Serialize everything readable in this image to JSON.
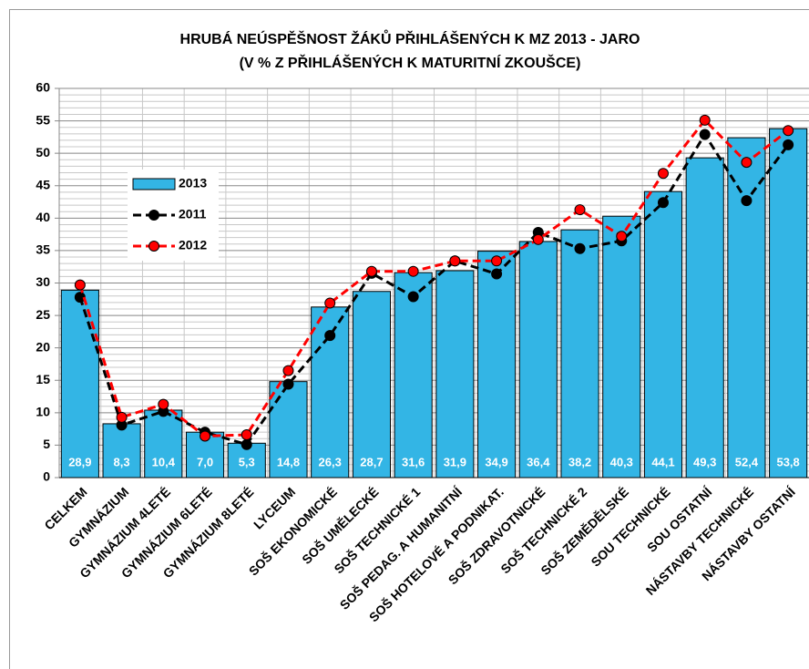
{
  "chart_data": {
    "type": "bar",
    "title": "HRUBÁ NEÚSPĚŠNOST ŽÁKŮ PŘIHLÁŠENÝCH K MZ 2013 - JARO",
    "subtitle": "(V % Z PŘIHLÁŠENÝCH K MATURITNÍ ZKOUŠCE)",
    "categories": [
      "CELKEM",
      "GYMNÁZIUM",
      "GYMNÁZIUM 4LETÉ",
      "GYMNÁZIUM 6LETÉ",
      "GYMNÁZIUM 8LETÉ",
      "LYCEUM",
      "SOŠ EKONOMICKÉ",
      "SOŠ UMĚLECKÉ",
      "SOŠ TECHNICKÉ 1",
      "SOŠ PEDAG. A HUMANITNÍ",
      "SOŠ HOTELOVÉ A PODNIKAT.",
      "SOŠ ZDRAVOTNICKÉ",
      "SOŠ TECHNICKÉ 2",
      "SOŠ ZEMĚDĚLSKÉ",
      "SOU TECHNICKÉ",
      "SOU OSTATNÍ",
      "NÁSTAVBY TECHNICKÉ",
      "NÁSTAVBY OSTATNÍ"
    ],
    "series": [
      {
        "name": "2013",
        "type": "bar",
        "color": "#33b5e5",
        "values": [
          28.9,
          8.3,
          10.4,
          7.0,
          5.3,
          14.8,
          26.3,
          28.7,
          31.6,
          31.9,
          34.9,
          36.4,
          38.2,
          40.3,
          44.1,
          49.3,
          52.4,
          53.8
        ],
        "value_labels": [
          "28,9",
          "8,3",
          "10,4",
          "7,0",
          "5,3",
          "14,8",
          "26,3",
          "28,7",
          "31,6",
          "31,9",
          "34,9",
          "36,4",
          "38,2",
          "40,3",
          "44,1",
          "49,3",
          "52,4",
          "53,8"
        ]
      },
      {
        "name": "2011",
        "type": "line",
        "color": "#000000",
        "values": [
          27.8,
          8.1,
          10.2,
          7.0,
          5.1,
          14.4,
          21.9,
          31.5,
          27.9,
          33.4,
          31.4,
          37.8,
          35.3,
          36.5,
          42.4,
          52.9,
          42.7,
          51.3
        ]
      },
      {
        "name": "2012",
        "type": "line",
        "color": "#ff0000",
        "values": [
          29.7,
          9.3,
          11.3,
          6.4,
          6.6,
          16.5,
          26.9,
          31.8,
          31.8,
          33.4,
          33.4,
          36.7,
          41.3,
          37.2,
          46.9,
          55.1,
          48.6,
          53.5
        ]
      }
    ],
    "ylim": [
      0,
      60
    ],
    "yticks": [
      0,
      5,
      10,
      15,
      20,
      25,
      30,
      35,
      40,
      45,
      50,
      55,
      60
    ],
    "yminorticks": [
      1,
      2,
      3,
      4,
      6,
      7,
      8,
      9,
      11,
      12,
      13,
      14,
      16,
      17,
      18,
      19,
      21,
      22,
      23,
      24,
      26,
      27,
      28,
      29,
      31,
      32,
      33,
      34,
      36,
      37,
      38,
      39,
      41,
      42,
      43,
      44,
      46,
      47,
      48,
      49,
      51,
      52,
      53,
      54,
      56,
      57,
      58,
      59
    ],
    "grid": true,
    "legend": "upper left"
  }
}
